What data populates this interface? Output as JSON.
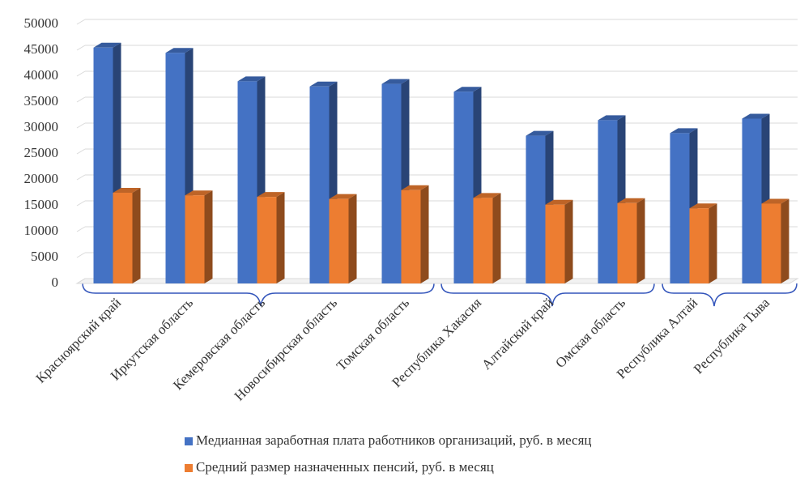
{
  "chart_data": {
    "type": "bar3d",
    "categories": [
      "Красноярский край",
      "Иркутская область",
      "Кемеровская область",
      "Новосибирская область",
      "Томская область",
      "Республика Хакасия",
      "Алтайский край",
      "Омская область",
      "Республика Алтай",
      "Республика Тыва"
    ],
    "series": [
      {
        "name": "Медианная заработная плата работников организаций, руб. в месяц",
        "color": "#4472c4",
        "values": [
          45500,
          44500,
          39000,
          38000,
          38500,
          37000,
          28500,
          31500,
          29000,
          31800
        ]
      },
      {
        "name": "Средний размер назначенных пенсий, руб. в месяц",
        "color": "#ed7d31",
        "values": [
          17500,
          17000,
          16700,
          16300,
          18000,
          16500,
          15200,
          15500,
          14500,
          15400
        ]
      }
    ],
    "ylim": [
      0,
      50000
    ],
    "yticks": [
      0,
      5000,
      10000,
      15000,
      20000,
      25000,
      30000,
      35000,
      40000,
      45000,
      50000
    ],
    "grid": true
  }
}
